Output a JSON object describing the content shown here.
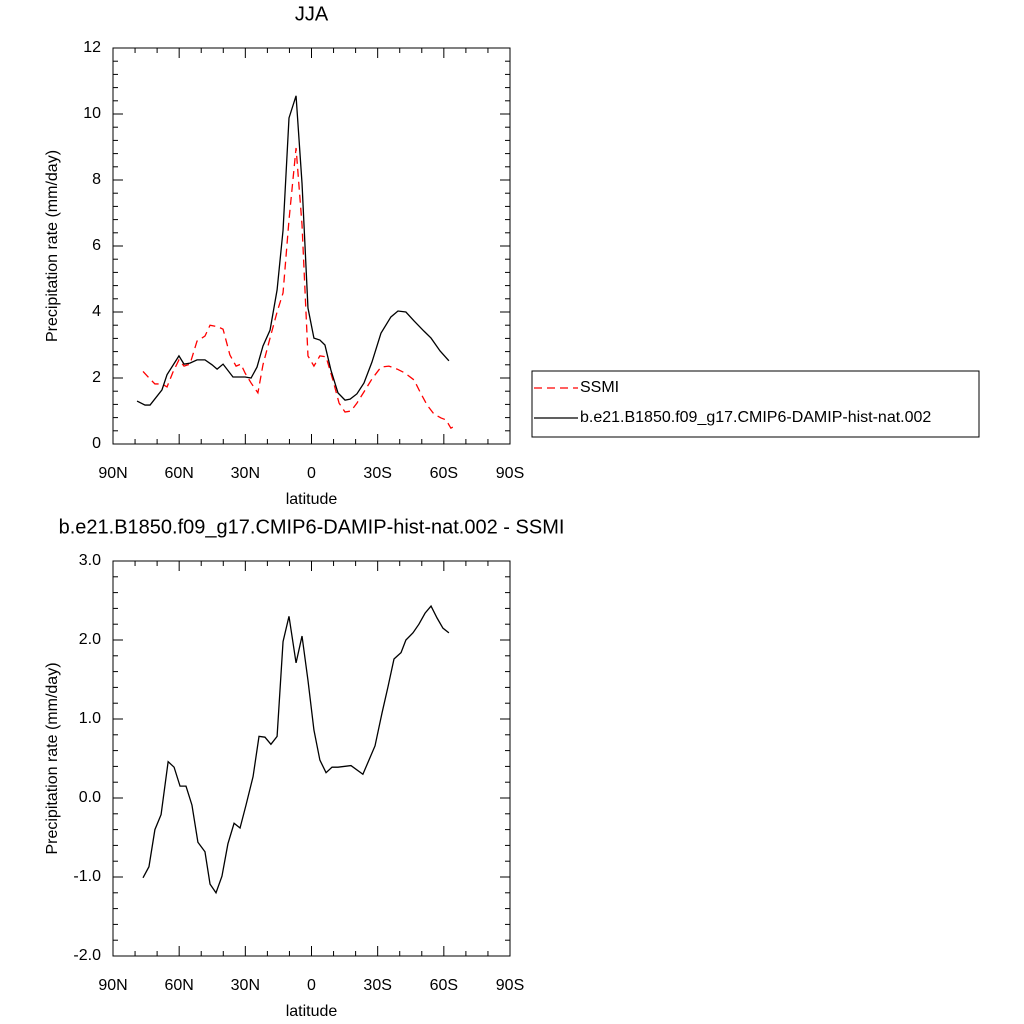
{
  "chart_data": [
    {
      "type": "line",
      "title": "JJA",
      "xlabel": "latitude",
      "ylabel": "Precipitation rate (mm/day)",
      "xlim": [
        90,
        -90
      ],
      "xticks": [
        {
          "value": 90,
          "label": "90N"
        },
        {
          "value": 60,
          "label": "60N"
        },
        {
          "value": 30,
          "label": "30N"
        },
        0,
        {
          "value": -30,
          "label": "30S"
        },
        {
          "value": -60,
          "label": "60S"
        },
        {
          "value": -90,
          "label": "90S"
        }
      ],
      "ylim": [
        0,
        12
      ],
      "yticks": [
        0,
        2,
        4,
        6,
        8,
        10,
        12
      ],
      "legend": "right",
      "series": [
        {
          "name": "SSMI",
          "color": "#ff0000",
          "linestyle": "dashed",
          "x": [
            76.4,
            73.2,
            71.0,
            67.8,
            65.5,
            62.8,
            60.1,
            57.8,
            55.1,
            51.9,
            48.3,
            46.0,
            42.4,
            40.1,
            37.0,
            34.2,
            32.0,
            30.1,
            27.4,
            24.3,
            22.0,
            18.8,
            15.6,
            12.9,
            10.2,
            7.0,
            4.3,
            1.6,
            -1.1,
            -3.8,
            -6.6,
            -9.7,
            -12.5,
            -15.2,
            -17.9,
            -20.6,
            -23.8,
            -27.4,
            -31.5,
            -35.1,
            -38.8,
            -42.4,
            -46.5,
            -49.2,
            -52.4,
            -55.5,
            -58.7,
            -61.0,
            -63.2,
            -65.1
          ],
          "values": [
            2.2,
            1.97,
            1.82,
            1.82,
            1.73,
            2.18,
            2.55,
            2.36,
            2.42,
            3.12,
            3.27,
            3.6,
            3.55,
            3.48,
            2.7,
            2.36,
            2.42,
            2.15,
            1.85,
            1.55,
            2.4,
            3.21,
            4.0,
            4.58,
            6.79,
            8.97,
            6.64,
            2.67,
            2.36,
            2.67,
            2.64,
            1.94,
            1.24,
            0.97,
            1.0,
            1.24,
            1.58,
            1.97,
            2.33,
            2.36,
            2.27,
            2.15,
            1.94,
            1.58,
            1.18,
            0.91,
            0.79,
            0.73,
            0.48,
            0.55
          ]
        },
        {
          "name": "b.e21.B1850.f09_g17.CMIP6-DAMIP-hist-nat.002",
          "color": "#000000",
          "linestyle": "solid",
          "x": [
            79.1,
            75.5,
            73.2,
            67.8,
            65.5,
            60.1,
            57.8,
            55.1,
            51.9,
            48.3,
            45.1,
            42.8,
            40.1,
            35.6,
            30.1,
            27.4,
            24.7,
            22.0,
            18.8,
            15.6,
            12.9,
            10.2,
            7.0,
            4.3,
            1.6,
            -1.1,
            -3.8,
            -6.1,
            -8.8,
            -12.0,
            -15.2,
            -17.5,
            -20.6,
            -23.8,
            -27.4,
            -31.5,
            -36.0,
            -39.2,
            -42.8,
            -46.5,
            -51.0,
            -54.2,
            -58.3,
            -62.3
          ],
          "values": [
            1.3,
            1.18,
            1.18,
            1.64,
            2.1,
            2.67,
            2.42,
            2.45,
            2.55,
            2.55,
            2.4,
            2.27,
            2.42,
            2.03,
            2.03,
            2.0,
            2.33,
            2.97,
            3.45,
            4.67,
            6.48,
            9.88,
            10.55,
            7.9,
            4.12,
            3.21,
            3.15,
            3.0,
            2.24,
            1.55,
            1.33,
            1.36,
            1.52,
            1.85,
            2.48,
            3.36,
            3.85,
            4.03,
            4.0,
            3.73,
            3.42,
            3.21,
            2.82,
            2.52
          ]
        }
      ]
    },
    {
      "type": "line",
      "title": "b.e21.B1850.f09_g17.CMIP6-DAMIP-hist-nat.002 - SSMI",
      "xlabel": "latitude",
      "ylabel": "Precipitation rate (mm/day)",
      "xlim": [
        90,
        -90
      ],
      "xticks": [
        {
          "value": 90,
          "label": "90N"
        },
        {
          "value": 60,
          "label": "60N"
        },
        {
          "value": 30,
          "label": "30N"
        },
        0,
        {
          "value": -30,
          "label": "30S"
        },
        {
          "value": -60,
          "label": "60S"
        },
        {
          "value": -90,
          "label": "90S"
        }
      ],
      "ylim": [
        -2,
        3
      ],
      "yticks": [
        {
          "value": -2,
          "label": "-2.0"
        },
        {
          "value": -1,
          "label": "-1.0"
        },
        {
          "value": 0,
          "label": "0.0"
        },
        {
          "value": 1,
          "label": "1.0"
        },
        {
          "value": 2,
          "label": "2.0"
        },
        {
          "value": 3,
          "label": "3.0"
        }
      ],
      "color": "#000000",
      "x": [
        76.4,
        73.7,
        71.0,
        68.2,
        65.0,
        62.3,
        59.6,
        56.9,
        54.2,
        51.5,
        48.3,
        46.0,
        43.3,
        40.6,
        37.9,
        35.1,
        32.4,
        29.7,
        26.5,
        23.8,
        21.1,
        18.4,
        15.6,
        12.9,
        10.2,
        7.0,
        4.3,
        1.6,
        -1.1,
        -3.8,
        -6.6,
        -9.3,
        -12.0,
        -17.9,
        -23.3,
        -28.8,
        -32.0,
        -34.7,
        -37.4,
        -40.6,
        -42.8,
        -46.0,
        -48.7,
        -51.5,
        -54.2,
        -56.9,
        -59.6,
        -62.3
      ],
      "values": [
        -1.01,
        -0.87,
        -0.4,
        -0.21,
        0.46,
        0.39,
        0.15,
        0.15,
        -0.09,
        -0.56,
        -0.68,
        -1.09,
        -1.2,
        -0.99,
        -0.58,
        -0.32,
        -0.38,
        -0.09,
        0.27,
        0.78,
        0.77,
        0.68,
        0.78,
        1.98,
        2.3,
        1.71,
        2.05,
        1.49,
        0.86,
        0.48,
        0.32,
        0.39,
        0.39,
        0.41,
        0.3,
        0.66,
        1.08,
        1.41,
        1.76,
        1.84,
        2.0,
        2.09,
        2.2,
        2.34,
        2.43,
        2.28,
        2.15,
        2.09
      ]
    }
  ]
}
